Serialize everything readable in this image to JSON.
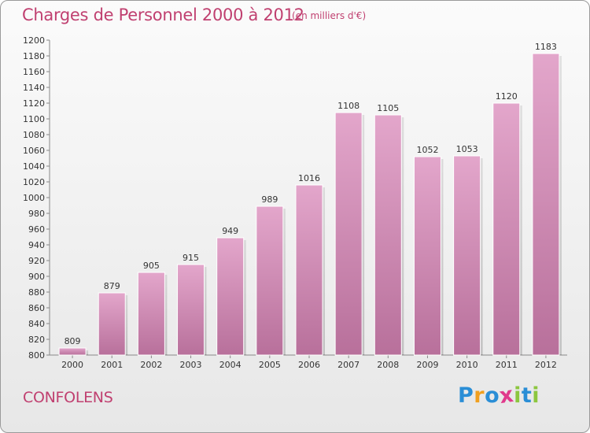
{
  "title": "Charges de Personnel 2000 à 2012",
  "subtitle": "(en milliers d'€)",
  "commune": "CONFOLENS",
  "logo": {
    "letters": [
      {
        "ch": "P",
        "color": "#2a8ed6"
      },
      {
        "ch": "r",
        "color": "#f0a020"
      },
      {
        "ch": "o",
        "color": "#2a8ed6"
      },
      {
        "ch": "x",
        "color": "#e03a8c"
      },
      {
        "ch": "i",
        "color": "#8cc63f"
      },
      {
        "ch": "t",
        "color": "#2a8ed6"
      },
      {
        "ch": "i",
        "color": "#8cc63f"
      }
    ]
  },
  "colors": {
    "bar_top": "#e3a6cb",
    "bar_bottom": "#b8709b",
    "accent": "#c04070",
    "axis": "#888888"
  },
  "chart_data": {
    "type": "bar",
    "categories": [
      "2000",
      "2001",
      "2002",
      "2003",
      "2004",
      "2005",
      "2006",
      "2007",
      "2008",
      "2009",
      "2010",
      "2011",
      "2012"
    ],
    "values": [
      809,
      879,
      905,
      915,
      949,
      989,
      1016,
      1108,
      1105,
      1052,
      1053,
      1120,
      1183
    ],
    "ylim": [
      800,
      1200
    ],
    "ytick_step": 20,
    "grid": false,
    "legend": "none"
  }
}
